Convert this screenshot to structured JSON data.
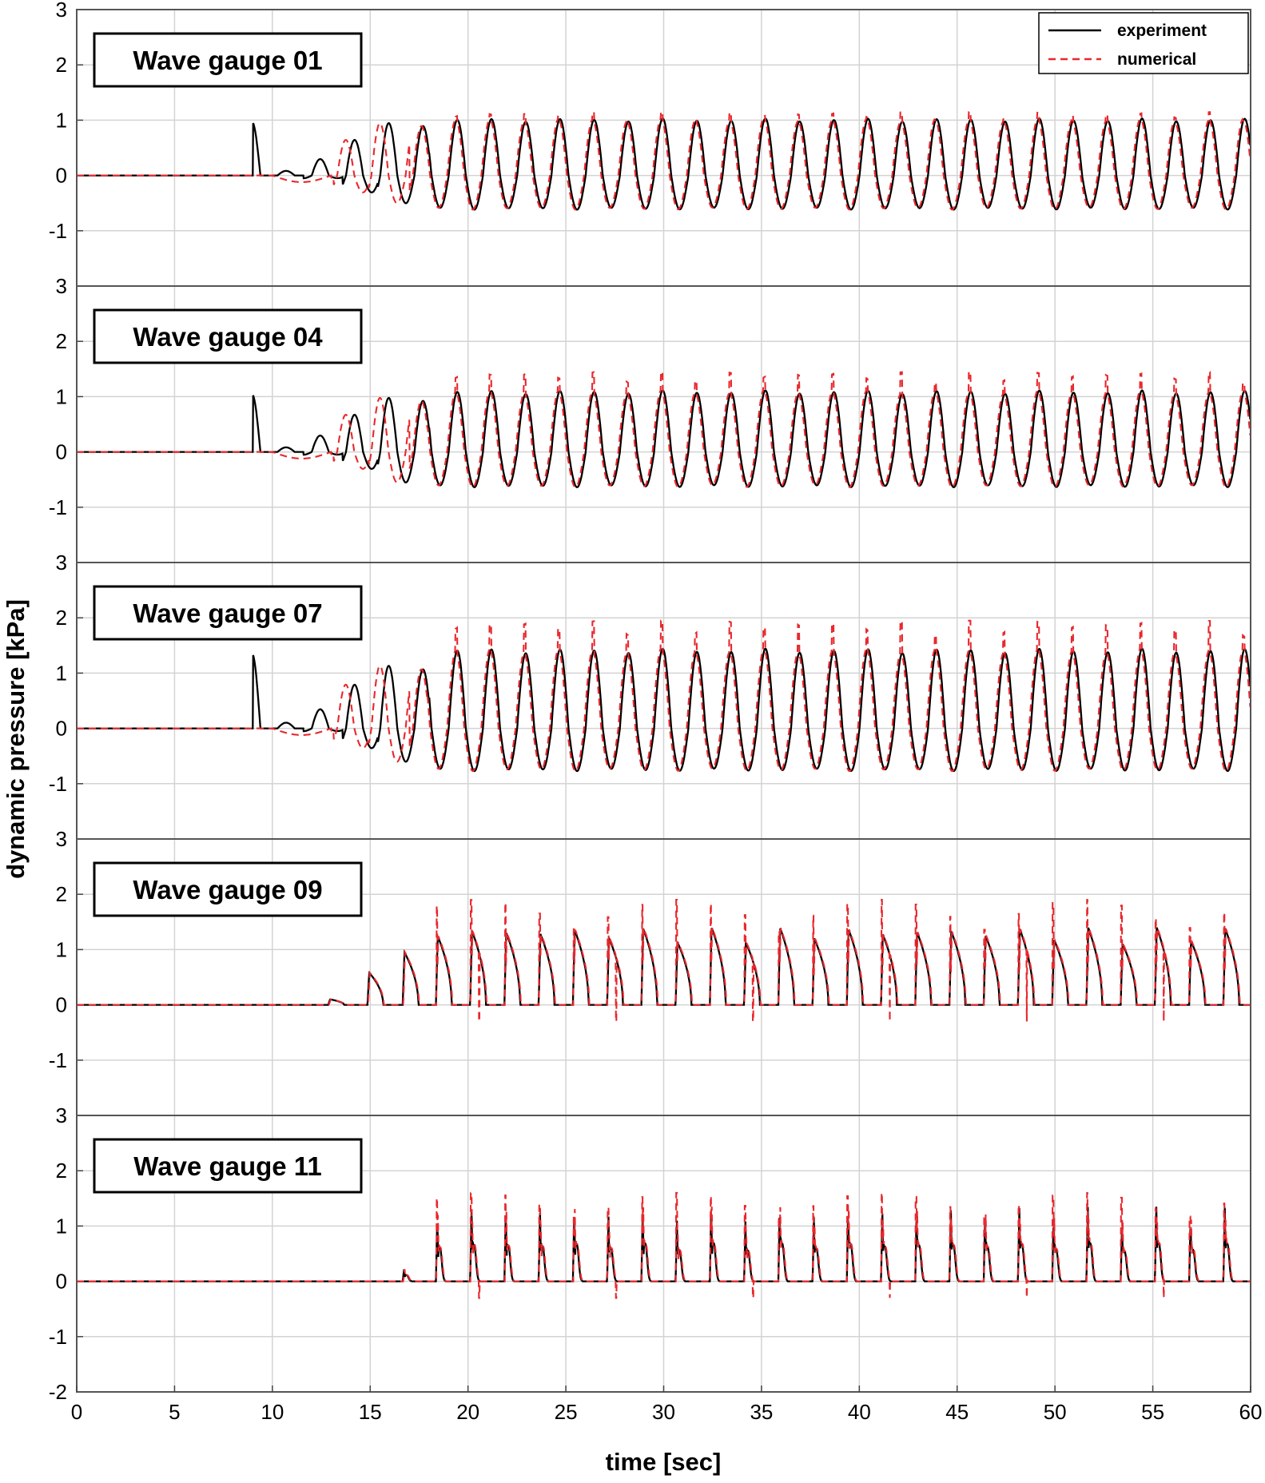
{
  "chart_data": {
    "type": "line",
    "xlabel": "time [sec]",
    "ylabel": "dynamic pressure [kPa]",
    "xlim": [
      0,
      60
    ],
    "xticks": [
      0,
      5,
      10,
      15,
      20,
      25,
      30,
      35,
      40,
      45,
      50,
      55,
      60
    ],
    "grid": true,
    "legend": {
      "placement": "top-right",
      "entries": [
        {
          "label": "experiment",
          "color": "#000000",
          "style": "solid"
        },
        {
          "label": "numerical",
          "color": "#e8282d",
          "style": "dashed"
        }
      ]
    },
    "series_names": [
      "experiment",
      "numerical"
    ],
    "wave": {
      "period_sec": 1.75,
      "first_crest_sec": [
        10.7,
        12.9,
        14.9,
        16.7,
        18.4,
        20.15
      ],
      "duration_sec": [
        0,
        60
      ]
    },
    "panels": [
      {
        "title": "Wave gauge 01",
        "ylim": [
          -2,
          3
        ],
        "yticks": [
          "3",
          "2",
          "1",
          "0",
          "-1"
        ],
        "type": "sinusoidal",
        "startup_peaks": [
          0.08,
          0.3,
          0.65,
          0.92
        ],
        "startup_troughs": [
          0.0,
          -0.05,
          -0.3,
          -0.5
        ],
        "steady_peak": 1.0,
        "steady_trough": -0.6,
        "numerical_peak": 1.15,
        "numerical_trough": -0.6
      },
      {
        "title": "Wave gauge 04",
        "ylim": [
          -2,
          3
        ],
        "yticks": [
          "3",
          "2",
          "1",
          "0",
          "-1"
        ],
        "type": "sinusoidal",
        "startup_peaks": [
          0.08,
          0.3,
          0.68,
          0.95
        ],
        "startup_troughs": [
          0.0,
          -0.05,
          -0.3,
          -0.55
        ],
        "steady_peak": 1.08,
        "steady_trough": -0.62,
        "numerical_peak": 1.45,
        "numerical_trough": -0.75
      },
      {
        "title": "Wave gauge 07",
        "ylim": [
          -2,
          3
        ],
        "yticks": [
          "3",
          "2",
          "1",
          "0",
          "-1"
        ],
        "type": "sinusoidal",
        "startup_peaks": [
          0.1,
          0.35,
          0.8,
          1.1
        ],
        "startup_troughs": [
          0.0,
          -0.05,
          -0.35,
          -0.6
        ],
        "steady_peak": 1.4,
        "steady_trough": -0.75,
        "numerical_peak": 1.95,
        "numerical_trough": -0.75
      },
      {
        "title": "Wave gauge 09",
        "ylim": [
          -2,
          3
        ],
        "yticks": [
          "3",
          "2",
          "1",
          "0",
          "-1"
        ],
        "type": "pulses",
        "startup_peaks": [
          0.0,
          0.1,
          0.58,
          0.95
        ],
        "steady_peak": 1.4,
        "numerical_peak": 1.9
      },
      {
        "title": "Wave gauge 11",
        "ylim": [
          -2,
          3
        ],
        "yticks": [
          "3",
          "2",
          "1",
          "0",
          "-1",
          "-2"
        ],
        "type": "spikes",
        "startup_peaks": [
          0.0,
          0.0,
          0.0,
          0.22
        ],
        "steady_peak": 1.35,
        "numerical_peak": 1.6
      }
    ]
  }
}
